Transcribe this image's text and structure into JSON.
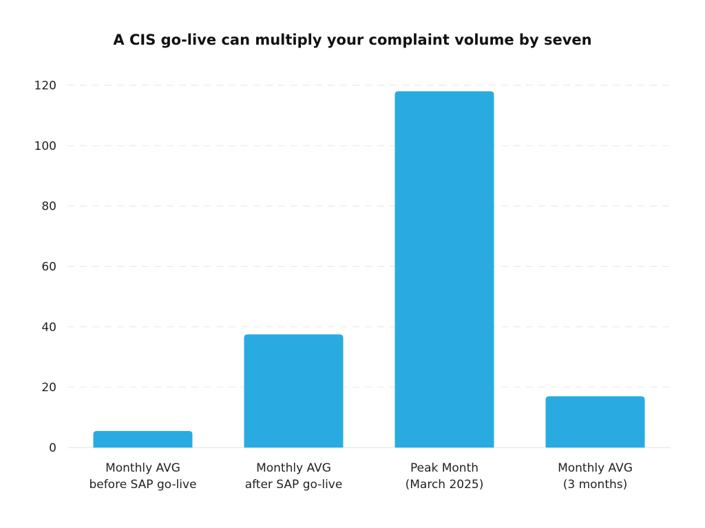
{
  "chart_data": {
    "type": "bar",
    "title": "A CIS go-live can multiply your complaint volume by seven",
    "categories": [
      [
        "Monthly AVG",
        "before SAP go-live"
      ],
      [
        "Monthly AVG",
        "after SAP go-live"
      ],
      [
        "Peak Month",
        "(March 2025)"
      ],
      [
        "Monthly AVG",
        "(3 months)"
      ]
    ],
    "values": [
      5.5,
      37.5,
      118,
      17
    ],
    "ylim": [
      0,
      120
    ],
    "yticks": [
      0,
      20,
      40,
      60,
      80,
      100,
      120
    ],
    "grid": true,
    "bar_color": "#29abe2",
    "grid_color": "#e6e6e6",
    "baseline_color": "#e0e0e0"
  }
}
